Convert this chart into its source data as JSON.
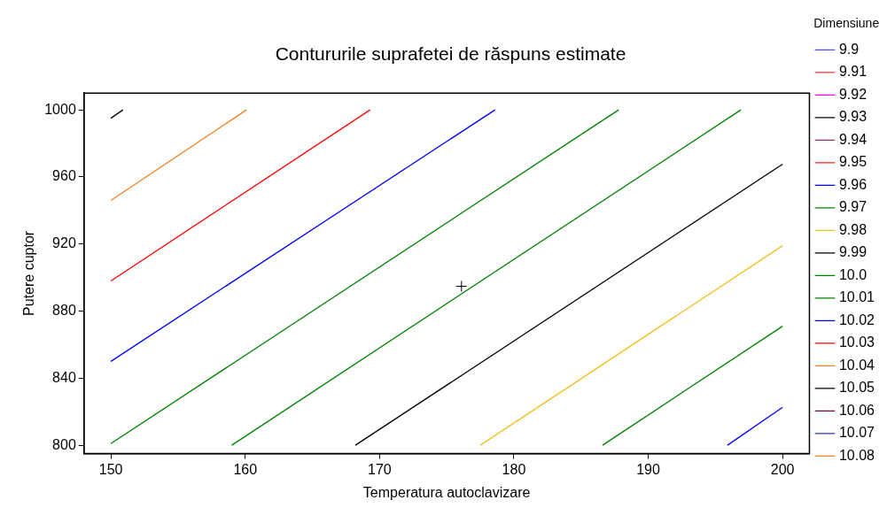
{
  "chart_data": {
    "type": "line",
    "title": "Contururile suprafetei de răspuns estimate",
    "xlabel": "Temperatura autoclavizare",
    "ylabel": "Putere cuptor",
    "legend_title": "Dimensiune",
    "legend": "right",
    "grid": false,
    "marker": "none",
    "line_style": "solid",
    "xlim": [
      148,
      202
    ],
    "xticks": [
      150,
      160,
      170,
      180,
      190,
      200
    ],
    "ylim": [
      795,
      1010
    ],
    "yticks": [
      800,
      840,
      880,
      920,
      960,
      1000
    ],
    "series": [
      {
        "name": "9.9",
        "color": "#4a4aff"
      },
      {
        "name": "9.91",
        "color": "#ff3030"
      },
      {
        "name": "9.92",
        "color": "#ff00ff"
      },
      {
        "name": "9.93",
        "color": "#000000"
      },
      {
        "name": "9.94",
        "color": "#993366"
      },
      {
        "name": "9.95",
        "color": "#ff2020"
      },
      {
        "name": "9.96",
        "color": "#0000ff",
        "x": [
          195.9,
          200
        ],
        "values": [
          800,
          822.6
        ]
      },
      {
        "name": "9.97",
        "color": "#008000",
        "x": [
          186.6,
          200
        ],
        "values": [
          800,
          871
        ]
      },
      {
        "name": "9.98",
        "color": "#f0c020",
        "x": [
          177.5,
          200
        ],
        "values": [
          800,
          919
        ]
      },
      {
        "name": "9.99",
        "color": "#000000",
        "x": [
          168.2,
          200
        ],
        "values": [
          800,
          967.6
        ]
      },
      {
        "name": "10.0",
        "color": "#008000",
        "x": [
          159,
          196.9
        ],
        "values": [
          800,
          1000
        ]
      },
      {
        "name": "10.01",
        "color": "#008000",
        "x": [
          150,
          187.8
        ],
        "values": [
          801,
          1000
        ]
      },
      {
        "name": "10.02",
        "color": "#0000ff",
        "x": [
          150,
          178.6
        ],
        "values": [
          850,
          1000
        ]
      },
      {
        "name": "10.03",
        "color": "#ff0000",
        "x": [
          150,
          169.3
        ],
        "values": [
          898,
          1000
        ]
      },
      {
        "name": "10.04",
        "color": "#f08020",
        "x": [
          150,
          160.1
        ],
        "values": [
          946,
          1000
        ]
      },
      {
        "name": "10.05",
        "color": "#000000",
        "x": [
          150,
          150.9
        ],
        "values": [
          995,
          1000
        ]
      },
      {
        "name": "10.06",
        "color": "#800040"
      },
      {
        "name": "10.07",
        "color": "#3333aa"
      },
      {
        "name": "10.08",
        "color": "#f08030"
      },
      {
        "type": "scatter",
        "marker": "cross",
        "color": "#000000",
        "x": [
          176.1
        ],
        "values": [
          894.8
        ]
      }
    ]
  }
}
